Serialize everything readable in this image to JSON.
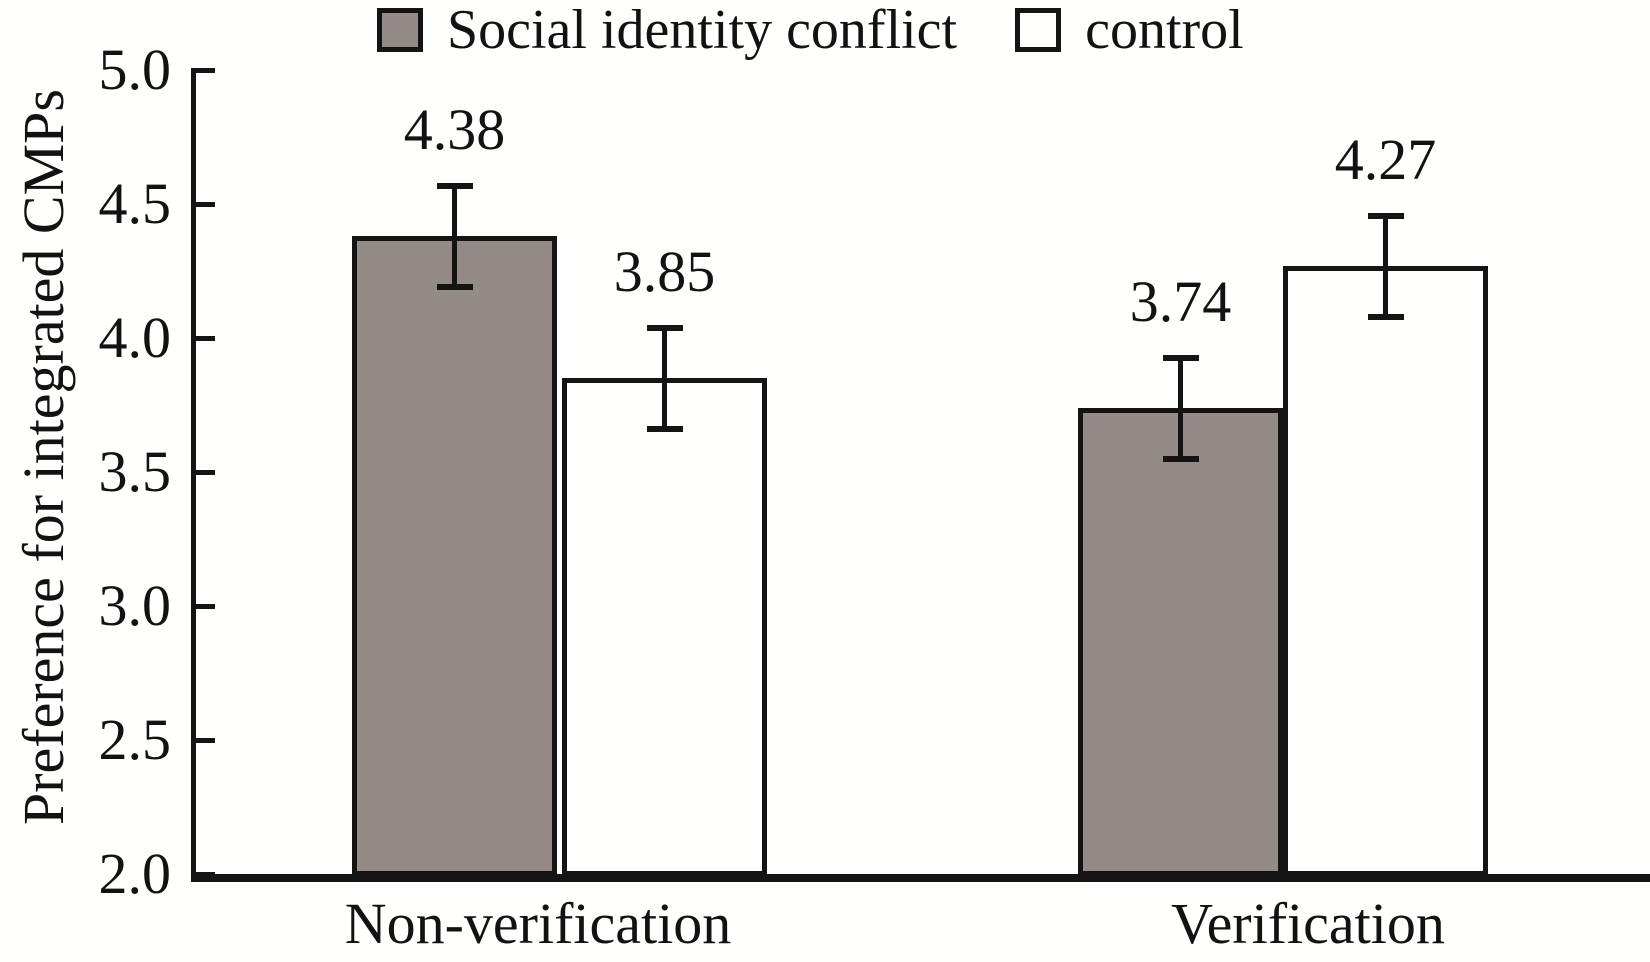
{
  "colors": {
    "ink": "#141414",
    "background": "#fffffe",
    "conflict_fill": "#948a88",
    "control_fill": "#fffffe"
  },
  "chart_data": {
    "type": "bar",
    "title": "",
    "ylabel": "Preference for integrated CMPs",
    "xlabel": "",
    "categories": [
      "Non-verification",
      "Verification"
    ],
    "series": [
      {
        "name": "Social identity conflict",
        "color": "#948a88",
        "values": [
          4.38,
          3.74
        ],
        "errors": [
          0.19,
          0.19
        ],
        "data_labels": [
          "4.38",
          "3.74"
        ]
      },
      {
        "name": "control",
        "color": "#fffffe",
        "values": [
          3.85,
          4.27
        ],
        "errors": [
          0.19,
          0.19
        ],
        "data_labels": [
          "3.85",
          "4.27"
        ]
      }
    ],
    "ylim": [
      2.0,
      5.0
    ],
    "yticks": [
      "5.0",
      "4.5",
      "4.0",
      "3.5",
      "3.0",
      "2.5",
      "2.0"
    ],
    "ytick_values": [
      5.0,
      4.5,
      4.0,
      3.5,
      3.0,
      2.5,
      2.0
    ],
    "grid": false,
    "legend_position": "top",
    "error_bars": true
  }
}
